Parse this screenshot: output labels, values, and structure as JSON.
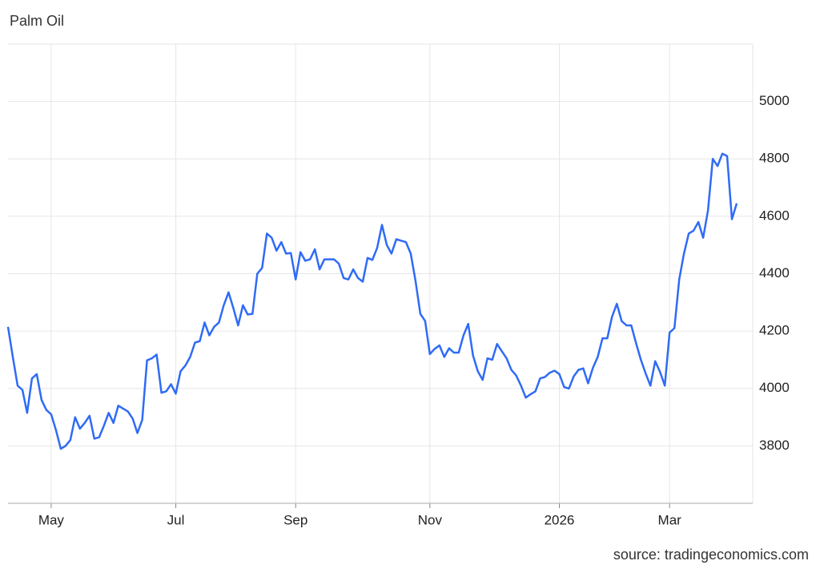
{
  "chart_data": {
    "type": "line",
    "title": "Palm Oil",
    "source": "source: tradingeconomics.com",
    "categories": [
      null,
      null,
      null,
      null,
      null,
      null,
      null,
      null,
      null,
      "May",
      null,
      null,
      null,
      null,
      null,
      null,
      null,
      null,
      null,
      null,
      null,
      null,
      null,
      null,
      null,
      null,
      null,
      null,
      null,
      null,
      null,
      null,
      null,
      null,
      null,
      "Jul",
      null,
      null,
      null,
      null,
      null,
      null,
      null,
      null,
      null,
      null,
      null,
      null,
      null,
      null,
      null,
      null,
      null,
      null,
      null,
      null,
      null,
      null,
      null,
      null,
      "Sep",
      null,
      null,
      null,
      null,
      null,
      null,
      null,
      null,
      null,
      null,
      null,
      null,
      null,
      null,
      null,
      null,
      null,
      null,
      null,
      null,
      null,
      null,
      null,
      null,
      null,
      null,
      null,
      "Nov",
      null,
      null,
      null,
      null,
      null,
      null,
      null,
      null,
      null,
      null,
      null,
      null,
      null,
      null,
      null,
      null,
      null,
      null,
      null,
      null,
      null,
      null,
      null,
      null,
      null,
      null,
      "2026",
      null,
      null,
      null,
      null,
      null,
      null,
      null,
      null,
      null,
      null,
      null,
      null,
      null,
      null,
      null,
      null,
      null,
      null,
      null,
      null,
      null,
      null,
      "Mar",
      null,
      null,
      null,
      null,
      null,
      null,
      null,
      null,
      null,
      null,
      null,
      null,
      null,
      null
    ],
    "series": [
      {
        "name": "Palm Oil",
        "color": "#2f6bf5",
        "values": [
          4215,
          4110,
          4010,
          3995,
          3915,
          4035,
          4050,
          3960,
          3925,
          3910,
          3855,
          3790,
          3800,
          3820,
          3900,
          3860,
          3880,
          3905,
          3825,
          3830,
          3870,
          3915,
          3880,
          3940,
          3930,
          3920,
          3895,
          3845,
          3890,
          4098,
          4105,
          4118,
          3985,
          3990,
          4015,
          3982,
          4060,
          4080,
          4110,
          4160,
          4165,
          4230,
          4185,
          4215,
          4230,
          4290,
          4335,
          4280,
          4220,
          4290,
          4258,
          4260,
          4400,
          4420,
          4540,
          4525,
          4480,
          4510,
          4470,
          4472,
          4380,
          4475,
          4445,
          4450,
          4485,
          4415,
          4450,
          4450,
          4450,
          4435,
          4385,
          4380,
          4415,
          4385,
          4372,
          4455,
          4448,
          4490,
          4570,
          4500,
          4470,
          4520,
          4515,
          4510,
          4470,
          4375,
          4260,
          4235,
          4120,
          4138,
          4150,
          4110,
          4140,
          4125,
          4125,
          4185,
          4225,
          4115,
          4060,
          4030,
          4105,
          4100,
          4155,
          4130,
          4105,
          4065,
          4045,
          4010,
          3968,
          3980,
          3990,
          4035,
          4040,
          4055,
          4062,
          4050,
          4005,
          4000,
          4042,
          4065,
          4070,
          4018,
          4072,
          4110,
          4175,
          4175,
          4250,
          4295,
          4235,
          4220,
          4220,
          4158,
          4100,
          4052,
          4010,
          4095,
          4058,
          4010,
          4195,
          4210,
          4380,
          4470,
          4540,
          4550,
          4580,
          4525,
          4620,
          4800,
          4775,
          4818,
          4810,
          4590,
          4645
        ]
      }
    ],
    "ylim": [
      3600,
      5200
    ],
    "yticks": [
      3800,
      4000,
      4200,
      4400,
      4600,
      4800,
      5000
    ],
    "grid": true
  }
}
